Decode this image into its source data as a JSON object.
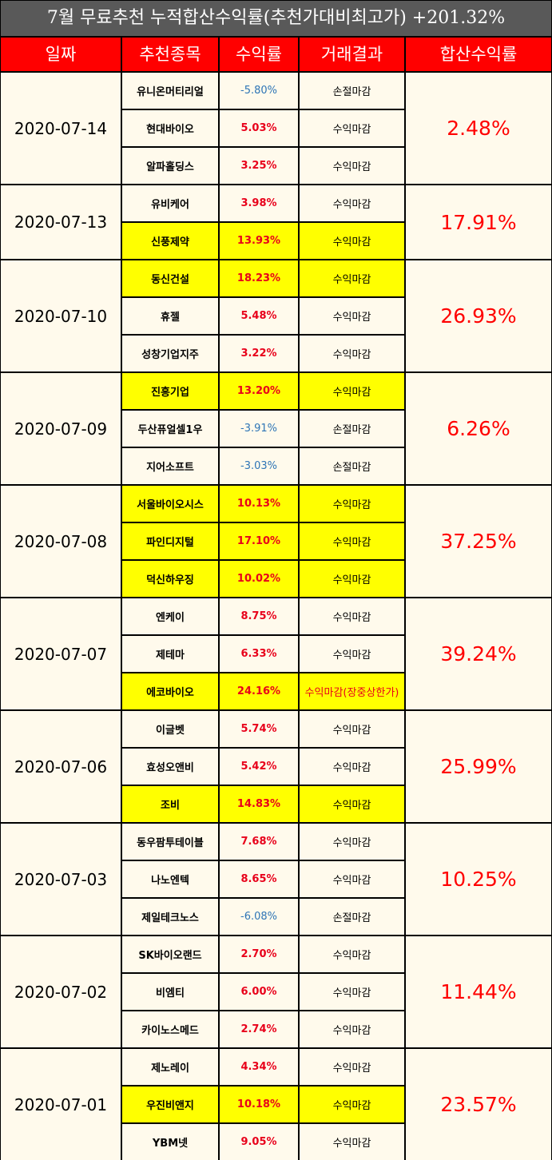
{
  "title": "7월 무료추천 누적합산수익률(추천가대비최고가) +201.32%",
  "headers": [
    "일짜",
    "추천종목",
    "수익률",
    "거래결과",
    "합산수익률"
  ],
  "groups": [
    {
      "date": "2020-07-14",
      "total": "2.48%",
      "rows": [
        {
          "name": "유니온머티리얼",
          "pct": "-5.80%",
          "result": "손절마감",
          "highlight": false
        },
        {
          "name": "현대바이오",
          "pct": "5.03%",
          "result": "수익마감",
          "highlight": false
        },
        {
          "name": "알파홀딩스",
          "pct": "3.25%",
          "result": "수익마감",
          "highlight": false
        }
      ]
    },
    {
      "date": "2020-07-13",
      "total": "17.91%",
      "rows": [
        {
          "name": "유비케어",
          "pct": "3.98%",
          "result": "수익마감",
          "highlight": false
        },
        {
          "name": "신풍제약",
          "pct": "13.93%",
          "result": "수익마감",
          "highlight": true
        }
      ]
    },
    {
      "date": "2020-07-10",
      "total": "26.93%",
      "rows": [
        {
          "name": "동신건설",
          "pct": "18.23%",
          "result": "수익마감",
          "highlight": true
        },
        {
          "name": "휴젤",
          "pct": "5.48%",
          "result": "수익마감",
          "highlight": false
        },
        {
          "name": "성창기업지주",
          "pct": "3.22%",
          "result": "수익마감",
          "highlight": false
        }
      ]
    },
    {
      "date": "2020-07-09",
      "total": "6.26%",
      "rows": [
        {
          "name": "진흥기업",
          "pct": "13.20%",
          "result": "수익마감",
          "highlight": true
        },
        {
          "name": "두산퓨얼셀1우",
          "pct": "-3.91%",
          "result": "손절마감",
          "highlight": false
        },
        {
          "name": "지어소프트",
          "pct": "-3.03%",
          "result": "손절마감",
          "highlight": false
        }
      ]
    },
    {
      "date": "2020-07-08",
      "total": "37.25%",
      "rows": [
        {
          "name": "서울바이오시스",
          "pct": "10.13%",
          "result": "수익마감",
          "highlight": true
        },
        {
          "name": "파인디지털",
          "pct": "17.10%",
          "result": "수익마감",
          "highlight": true
        },
        {
          "name": "덕신하우징",
          "pct": "10.02%",
          "result": "수익마감",
          "highlight": true
        }
      ]
    },
    {
      "date": "2020-07-07",
      "total": "39.24%",
      "rows": [
        {
          "name": "엔케이",
          "pct": "8.75%",
          "result": "수익마감",
          "highlight": false
        },
        {
          "name": "제테마",
          "pct": "6.33%",
          "result": "수익마감",
          "highlight": false
        },
        {
          "name": "에코바이오",
          "pct": "24.16%",
          "result": "수익마감(장중상한가)",
          "highlight": true,
          "red_result": true
        }
      ]
    },
    {
      "date": "2020-07-06",
      "total": "25.99%",
      "rows": [
        {
          "name": "이글벳",
          "pct": "5.74%",
          "result": "수익마감",
          "highlight": false
        },
        {
          "name": "효성오앤비",
          "pct": "5.42%",
          "result": "수익마감",
          "highlight": false
        },
        {
          "name": "조비",
          "pct": "14.83%",
          "result": "수익마감",
          "highlight": true
        }
      ]
    },
    {
      "date": "2020-07-03",
      "total": "10.25%",
      "rows": [
        {
          "name": "동우팜투테이블",
          "pct": "7.68%",
          "result": "수익마감",
          "highlight": false
        },
        {
          "name": "나노엔텍",
          "pct": "8.65%",
          "result": "수익마감",
          "highlight": false
        },
        {
          "name": "제일테크노스",
          "pct": "-6.08%",
          "result": "손절마감",
          "highlight": false
        }
      ]
    },
    {
      "date": "2020-07-02",
      "total": "11.44%",
      "rows": [
        {
          "name": "SK바이오랜드",
          "pct": "2.70%",
          "result": "수익마감",
          "highlight": false
        },
        {
          "name": "비엠티",
          "pct": "6.00%",
          "result": "수익마감",
          "highlight": false
        },
        {
          "name": "카이노스메드",
          "pct": "2.74%",
          "result": "수익마감",
          "highlight": false
        }
      ]
    },
    {
      "date": "2020-07-01",
      "total": "23.57%",
      "rows": [
        {
          "name": "제노레이",
          "pct": "4.34%",
          "result": "수익마감",
          "highlight": false
        },
        {
          "name": "우진비앤지",
          "pct": "10.18%",
          "result": "수익마감",
          "highlight": true
        },
        {
          "name": "YBM넷",
          "pct": "9.05%",
          "result": "수익마감",
          "highlight": false
        }
      ]
    }
  ],
  "colors": {
    "header_bg": "#ff0000",
    "title_bg": "#595959",
    "cell_bg": "#fffaec",
    "highlight": "#ffff00",
    "positive": "#e8001a",
    "negative": "#2e75b6"
  }
}
